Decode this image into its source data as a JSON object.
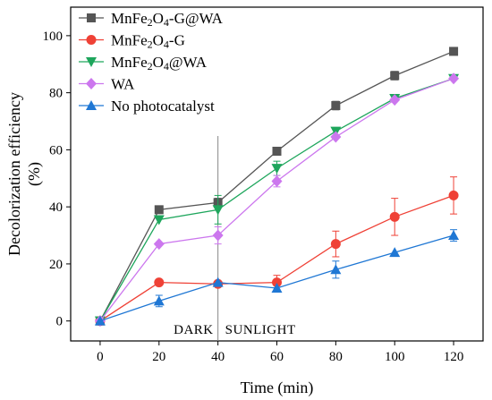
{
  "chart_data": {
    "type": "line",
    "title": "",
    "xlabel": "Time (min)",
    "ylabel": "Decolorization efficiency (%)",
    "ylabel_lines": [
      "Decolorization efficiency",
      "(%)"
    ],
    "xlim": [
      -10,
      130
    ],
    "ylim": [
      -7,
      110
    ],
    "xticks": [
      0,
      20,
      40,
      60,
      80,
      100,
      120
    ],
    "yticks": [
      0,
      20,
      40,
      60,
      80,
      100
    ],
    "grid": false,
    "legend_position": "top-left",
    "x": [
      0,
      20,
      40,
      60,
      80,
      100,
      120
    ],
    "annotations": [
      {
        "text": "DARK",
        "x": 40,
        "y": -3,
        "anchor": "end"
      },
      {
        "text": "SUNLIGHT",
        "x": 40,
        "y": -3,
        "anchor": "start"
      }
    ],
    "divider_x": 40,
    "series": [
      {
        "name": "MnFe2O4-G@WA",
        "name_parts": [
          [
            "MnFe",
            false
          ],
          [
            "2",
            true
          ],
          [
            "O",
            false
          ],
          [
            "4",
            true
          ],
          [
            "-G@WA",
            false
          ]
        ],
        "color": "#555555",
        "marker": "square",
        "values": [
          0,
          39,
          41.5,
          59.5,
          75.5,
          86,
          94.5
        ],
        "errors": [
          0,
          0,
          1.5,
          0,
          1.5,
          1.5,
          0
        ]
      },
      {
        "name": "MnFe2O4-G",
        "name_parts": [
          [
            "MnFe",
            false
          ],
          [
            "2",
            true
          ],
          [
            "O",
            false
          ],
          [
            "4",
            true
          ],
          [
            "-G",
            false
          ]
        ],
        "color": "#ef4136",
        "marker": "circle",
        "values": [
          0,
          13.5,
          13,
          13.5,
          27,
          36.5,
          44
        ],
        "errors": [
          0,
          0,
          0,
          2.5,
          4.5,
          6.5,
          6.5
        ]
      },
      {
        "name": "MnFe2O4@WA",
        "name_parts": [
          [
            "MnFe",
            false
          ],
          [
            "2",
            true
          ],
          [
            "O",
            false
          ],
          [
            "4",
            true
          ],
          [
            "@WA",
            false
          ]
        ],
        "color": "#1ea65c",
        "marker": "triangle-down",
        "values": [
          0,
          35.5,
          39,
          53.5,
          66.5,
          78,
          85
        ],
        "errors": [
          0,
          0,
          5,
          2.5,
          0,
          0,
          0
        ]
      },
      {
        "name": "WA",
        "name_parts": [
          [
            "WA",
            false
          ]
        ],
        "color": "#cc77ee",
        "marker": "diamond",
        "values": [
          0,
          27,
          30,
          49,
          64.5,
          77.5,
          85
        ],
        "errors": [
          0,
          0,
          3,
          2,
          0,
          0,
          0
        ]
      },
      {
        "name": "No photocatalyst",
        "name_parts": [
          [
            "No photocatalyst",
            false
          ]
        ],
        "color": "#1f77d4",
        "marker": "triangle-up",
        "values": [
          0,
          7,
          13.5,
          11.5,
          18,
          24,
          30
        ],
        "errors": [
          0,
          2,
          0,
          0,
          3,
          0,
          2
        ]
      }
    ]
  }
}
